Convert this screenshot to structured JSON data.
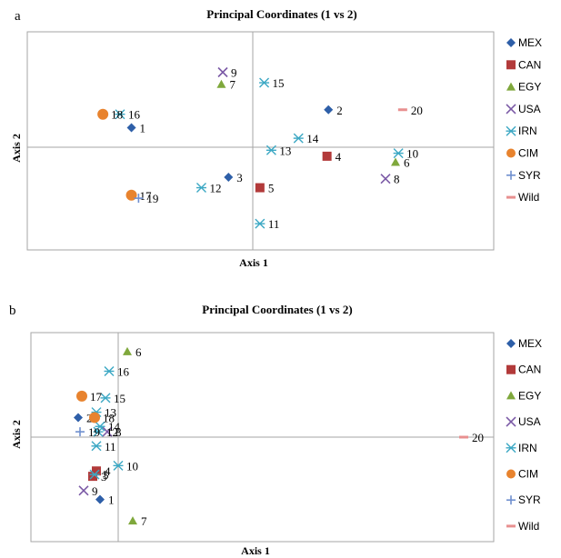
{
  "panels": [
    "a",
    "b"
  ],
  "legend": [
    "MEX",
    "CAN",
    "EGY",
    "USA",
    "IRN",
    "CIM",
    "SYR",
    "Wild"
  ],
  "colors": {
    "MEX": "#2E5FA8",
    "CAN": "#B23A3A",
    "EGY": "#7FA83C",
    "USA": "#7B5AA6",
    "IRN": "#3CA8C4",
    "CIM": "#E8832E",
    "SYR": "#6F8FCF",
    "Wild": "#E89090"
  },
  "chart_data": [
    {
      "type": "scatter",
      "panel": "a",
      "title": "Principal Coordinates (1 vs 2)",
      "xlabel": "Axis 1",
      "ylabel": "Axis 2",
      "xlim": [
        -1.0,
        1.0
      ],
      "ylim": [
        -0.7,
        0.7
      ],
      "grid": false,
      "legend": "right",
      "points": [
        {
          "label": "1",
          "group": "MEX",
          "x": -0.85,
          "y": 0.13
        },
        {
          "label": "2",
          "group": "MEX",
          "x": 0.53,
          "y": 0.25
        },
        {
          "label": "3",
          "group": "MEX",
          "x": -0.17,
          "y": -0.2
        },
        {
          "label": "4",
          "group": "CAN",
          "x": 0.52,
          "y": -0.06
        },
        {
          "label": "5",
          "group": "CAN",
          "x": 0.05,
          "y": -0.27
        },
        {
          "label": "6",
          "group": "EGY",
          "x": 1.0,
          "y": -0.1
        },
        {
          "label": "7",
          "group": "EGY",
          "x": -0.22,
          "y": 0.42
        },
        {
          "label": "8",
          "group": "USA",
          "x": 0.93,
          "y": -0.21
        },
        {
          "label": "9",
          "group": "USA",
          "x": -0.21,
          "y": 0.5
        },
        {
          "label": "10",
          "group": "IRN",
          "x": 1.02,
          "y": -0.04
        },
        {
          "label": "11",
          "group": "IRN",
          "x": 0.05,
          "y": -0.51
        },
        {
          "label": "12",
          "group": "IRN",
          "x": -0.36,
          "y": -0.27
        },
        {
          "label": "13",
          "group": "IRN",
          "x": 0.13,
          "y": -0.02
        },
        {
          "label": "14",
          "group": "IRN",
          "x": 0.32,
          "y": 0.06
        },
        {
          "label": "15",
          "group": "IRN",
          "x": 0.08,
          "y": 0.43
        },
        {
          "label": "16",
          "group": "IRN",
          "x": -0.93,
          "y": 0.22
        },
        {
          "label": "17",
          "group": "CIM",
          "x": -0.85,
          "y": -0.32
        },
        {
          "label": "18",
          "group": "CIM",
          "x": -1.05,
          "y": 0.22
        },
        {
          "label": "19",
          "group": "SYR",
          "x": -0.8,
          "y": -0.34
        },
        {
          "label": "20",
          "group": "Wild",
          "x": 1.05,
          "y": 0.25
        }
      ]
    },
    {
      "type": "scatter",
      "panel": "b",
      "title": "Principal Coordinates (1 vs 2)",
      "xlabel": "Axis 1",
      "ylabel": "Axis 2",
      "xlim": [
        -0.5,
        2.0
      ],
      "ylim": [
        -0.5,
        0.5
      ],
      "grid": false,
      "legend": "right",
      "points": [
        {
          "label": "1",
          "group": "MEX",
          "x": -0.1,
          "y": -0.35
        },
        {
          "label": "2",
          "group": "MEX",
          "x": -0.22,
          "y": 0.11
        },
        {
          "label": "3",
          "group": "CAN",
          "x": -0.14,
          "y": -0.22
        },
        {
          "label": "4",
          "group": "CAN",
          "x": -0.12,
          "y": -0.19
        },
        {
          "label": "5",
          "group": "IRN",
          "x": -0.13,
          "y": -0.21
        },
        {
          "label": "6",
          "group": "EGY",
          "x": 0.05,
          "y": 0.48
        },
        {
          "label": "7",
          "group": "EGY",
          "x": 0.08,
          "y": -0.47
        },
        {
          "label": "8",
          "group": "USA",
          "x": -0.06,
          "y": 0.03
        },
        {
          "label": "9",
          "group": "USA",
          "x": -0.19,
          "y": -0.3
        },
        {
          "label": "10",
          "group": "IRN",
          "x": 0.0,
          "y": -0.16
        },
        {
          "label": "11",
          "group": "IRN",
          "x": -0.12,
          "y": -0.05
        },
        {
          "label": "12",
          "group": "IRN",
          "x": -0.11,
          "y": 0.03
        },
        {
          "label": "13",
          "group": "IRN",
          "x": -0.12,
          "y": 0.14
        },
        {
          "label": "14",
          "group": "IRN",
          "x": -0.1,
          "y": 0.06
        },
        {
          "label": "15",
          "group": "IRN",
          "x": -0.07,
          "y": 0.22
        },
        {
          "label": "16",
          "group": "IRN",
          "x": -0.05,
          "y": 0.37
        },
        {
          "label": "17",
          "group": "CIM",
          "x": -0.2,
          "y": 0.23
        },
        {
          "label": "18",
          "group": "CIM",
          "x": -0.13,
          "y": 0.11
        },
        {
          "label": "19",
          "group": "SYR",
          "x": -0.21,
          "y": 0.03
        },
        {
          "label": "20",
          "group": "Wild",
          "x": 1.9,
          "y": 0.0
        }
      ]
    }
  ]
}
